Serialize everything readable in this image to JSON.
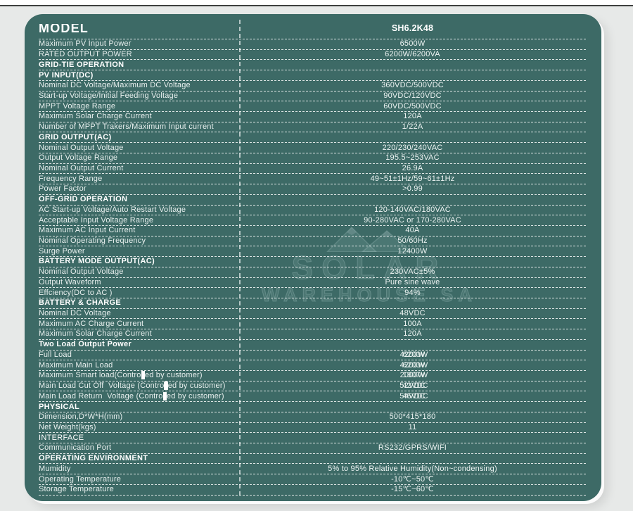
{
  "header": {
    "model_label": "MODEL",
    "model_value": "SH6.2K48"
  },
  "colors": {
    "panel_bg": "#3d6a66",
    "page_bg": "#e7e9e8",
    "top_line": "#3d3f3e",
    "text": "#eef4f3",
    "dashed_line": "rgba(255,255,255,0.82)"
  },
  "watermark": {
    "icon": "mountain-logo-icon",
    "line1": "SOLAR",
    "line2": "WAREHOUSE SA"
  },
  "rows": [
    {
      "label": "Maximum PV Input Power",
      "value": "6500W"
    },
    {
      "label": "RATED OUTPUT POWER",
      "value": "6200W/6200VA"
    },
    {
      "label": "GRID-TIE OPERATION",
      "value": "",
      "section": true
    },
    {
      "label": "PV INPUT(DC)",
      "value": "",
      "section": true
    },
    {
      "label": "Nominal DC Voltage/Maximum DC Voltage",
      "value": "360VDC/500VDC"
    },
    {
      "label": "Start-up Voltage/Initial Feeding Voltage",
      "value": "90VDC/120VDC"
    },
    {
      "label": "MPPT Voltage Range",
      "value": "60VDC/500VDC"
    },
    {
      "label": "Maximum Solar Charge Current",
      "value": "120A"
    },
    {
      "label": "Number of MPPT Trakers/Maximum Input current",
      "value": "1/22A"
    },
    {
      "label": "GRID OUTPUT(AC)",
      "value": "",
      "section": true
    },
    {
      "label": "Nominal Output Voltage",
      "value": "220/230/240VAC"
    },
    {
      "label": "Output Voltage Range",
      "value": "195.5~253VAC"
    },
    {
      "label": "Nominal Output Current",
      "value": "26.9A"
    },
    {
      "label": "Frequency Range",
      "value": "49~51±1Hz/59~61±1Hz"
    },
    {
      "label": "Power Factor",
      "value": ">0.99"
    },
    {
      "label": "OFF-GRID OPERATION",
      "value": "",
      "section": true
    },
    {
      "label": "AC Start-up Voltage/Auto Restart Voltage",
      "value": "120-140VAC/180VAC"
    },
    {
      "label": "Acceptable Input Voltage Range",
      "value": "90-280VAC or 170-280VAC"
    },
    {
      "label": "Maximum AC Input Current",
      "value": "40A"
    },
    {
      "label": "Nominal Operating Frequency",
      "value": "50/60Hz"
    },
    {
      "label": "Surge Power",
      "value": "12400W"
    },
    {
      "label": "BATTERY MODE OUTPUT(AC)",
      "value": "",
      "section": true
    },
    {
      "label": "Nominal Output Voltage",
      "value": "230VAC±5%"
    },
    {
      "label": "Output Waveform",
      "value": "Pure sine wave"
    },
    {
      "label": "Effciency(DC to AC )",
      "value": "94%"
    },
    {
      "label": "BATTERY & CHARGE",
      "value": "",
      "section": true
    },
    {
      "label": "Nominal DC Voltage",
      "value": "48VDC"
    },
    {
      "label": "Maximum AC Charge Current",
      "value": "100A"
    },
    {
      "label": "Maximum Solar Charge Current",
      "value": "120A"
    },
    {
      "label": "Two Load Output Power",
      "value": "",
      "section": true
    },
    {
      "label": "Full Load",
      "value": "4200W",
      "value_ghost": "6200W"
    },
    {
      "label": "Maximum Main Load",
      "value": "4200W",
      "value_ghost": "6200W"
    },
    {
      "label_pre": "Maximum Smart load(Contro",
      "label_patch": "ll",
      "label_post": "ed by customer)",
      "value": "2000W",
      "value_ghost": "1807W"
    },
    {
      "label_pre": "Main Load Cut Off  Voltage (Contro",
      "label_patch": "ll",
      "label_post": "ed by customer)",
      "value": "52VDC",
      "value_ghost": "42VDC"
    },
    {
      "label_pre": "Main Load Return  Voltage (Contro",
      "label_patch": "ll",
      "label_post": "ed by customer)",
      "value": "54VDC",
      "value_ghost": "46VDC"
    },
    {
      "label": "PHYSICAL",
      "value": "",
      "section": true
    },
    {
      "label": "Dimension,D*W*H(mm)",
      "value": "500*415*180"
    },
    {
      "label": "Net Weight(kgs)",
      "value": "11"
    },
    {
      "label": "INTERFACE",
      "value": "",
      "section": true,
      "light": true
    },
    {
      "label": "Communication Port",
      "value": "RS232/GPRS/WIFI"
    },
    {
      "label": "OPERATING ENVIRONMENT",
      "value": "",
      "section": true
    },
    {
      "label": "Mumidity",
      "value": "5% to 95% Relative Humidity(Non~condensing)"
    },
    {
      "label": "Operating Temperature",
      "value": "-10℃~50℃"
    },
    {
      "label": "Storage Temperature",
      "value": "-15℃~60℃"
    }
  ]
}
